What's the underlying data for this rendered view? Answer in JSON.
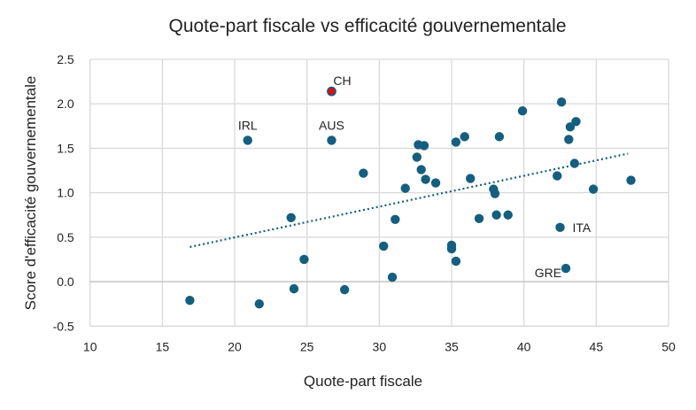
{
  "chart_data": {
    "type": "scatter",
    "title": "Quote-part fiscale vs efficacité gouvernementale",
    "xlabel": "Quote-part fiscale",
    "ylabel": "Score d'efficacité gouvernementale",
    "xlim": [
      10,
      50
    ],
    "ylim": [
      -0.5,
      2.5
    ],
    "xticks": [
      "10",
      "15",
      "20",
      "25",
      "30",
      "35",
      "40",
      "45",
      "50"
    ],
    "yticks": [
      "-0.5",
      "0.0",
      "0.5",
      "1.0",
      "1.5",
      "2.0",
      "2.5"
    ],
    "grid": true,
    "colors": {
      "point": "#155e7f",
      "highlight": "#ff0000",
      "trend": "#155e7f",
      "grid": "#d9d9d9"
    },
    "points": [
      {
        "x": 16.9,
        "y": -0.21
      },
      {
        "x": 20.9,
        "y": 1.59,
        "label": "IRL"
      },
      {
        "x": 26.7,
        "y": 2.14,
        "label": "CH",
        "highlight": true
      },
      {
        "x": 26.7,
        "y": 1.59,
        "label": "AUS"
      },
      {
        "x": 28.9,
        "y": 1.22
      },
      {
        "x": 23.9,
        "y": 0.72
      },
      {
        "x": 24.8,
        "y": 0.25
      },
      {
        "x": 21.7,
        "y": -0.25
      },
      {
        "x": 24.1,
        "y": -0.08
      },
      {
        "x": 27.6,
        "y": -0.09
      },
      {
        "x": 30.3,
        "y": 0.4
      },
      {
        "x": 30.9,
        "y": 0.05
      },
      {
        "x": 31.1,
        "y": 0.7
      },
      {
        "x": 31.8,
        "y": 1.05
      },
      {
        "x": 32.6,
        "y": 1.4
      },
      {
        "x": 32.7,
        "y": 1.54
      },
      {
        "x": 33.1,
        "y": 1.53
      },
      {
        "x": 32.9,
        "y": 1.26
      },
      {
        "x": 33.2,
        "y": 1.15
      },
      {
        "x": 33.9,
        "y": 1.11
      },
      {
        "x": 35.0,
        "y": 0.41
      },
      {
        "x": 35.0,
        "y": 0.37
      },
      {
        "x": 35.3,
        "y": 0.23
      },
      {
        "x": 35.3,
        "y": 1.57
      },
      {
        "x": 35.9,
        "y": 1.63
      },
      {
        "x": 36.3,
        "y": 1.16
      },
      {
        "x": 36.9,
        "y": 0.71
      },
      {
        "x": 37.9,
        "y": 1.04
      },
      {
        "x": 38.0,
        "y": 0.99
      },
      {
        "x": 38.1,
        "y": 0.75
      },
      {
        "x": 38.9,
        "y": 0.75
      },
      {
        "x": 38.3,
        "y": 1.63
      },
      {
        "x": 39.9,
        "y": 1.92
      },
      {
        "x": 42.3,
        "y": 1.19
      },
      {
        "x": 42.5,
        "y": 0.61,
        "label": "ITA"
      },
      {
        "x": 42.6,
        "y": 2.02
      },
      {
        "x": 42.9,
        "y": 0.15,
        "label": "GRE"
      },
      {
        "x": 43.1,
        "y": 1.6
      },
      {
        "x": 43.2,
        "y": 1.74
      },
      {
        "x": 43.6,
        "y": 1.8
      },
      {
        "x": 43.5,
        "y": 1.33
      },
      {
        "x": 44.8,
        "y": 1.04
      },
      {
        "x": 47.4,
        "y": 1.14
      }
    ],
    "trendline": {
      "type": "linear",
      "x": [
        16.9,
        47.2
      ],
      "y": [
        0.39,
        1.44
      ]
    }
  }
}
